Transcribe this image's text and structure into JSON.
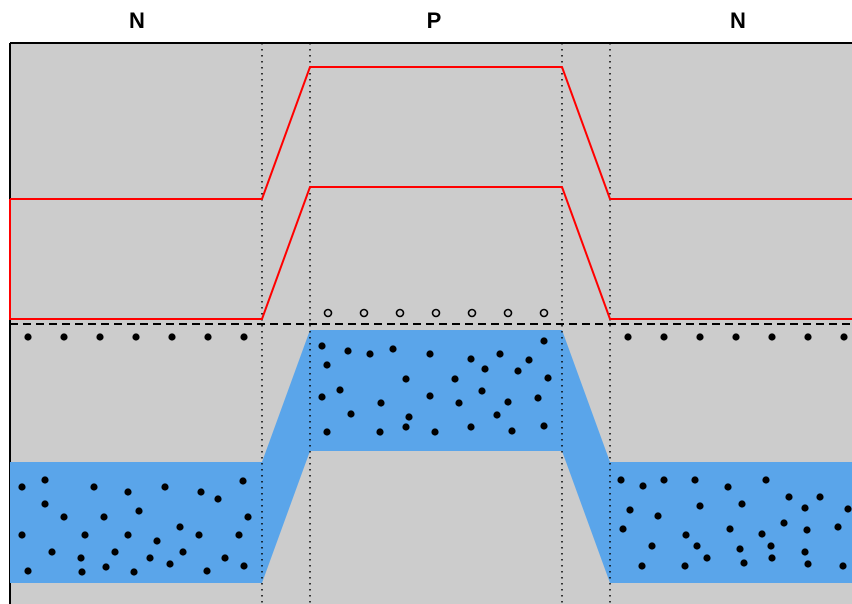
{
  "regions": [
    {
      "label": "N"
    },
    {
      "label": "P"
    },
    {
      "label": "N"
    }
  ],
  "colors": {
    "background": "#cccccc",
    "band_edge": "#ff0000",
    "electron_band": "#5aa5ea",
    "carrier": "#000000",
    "fermi_level": "#000000"
  }
}
